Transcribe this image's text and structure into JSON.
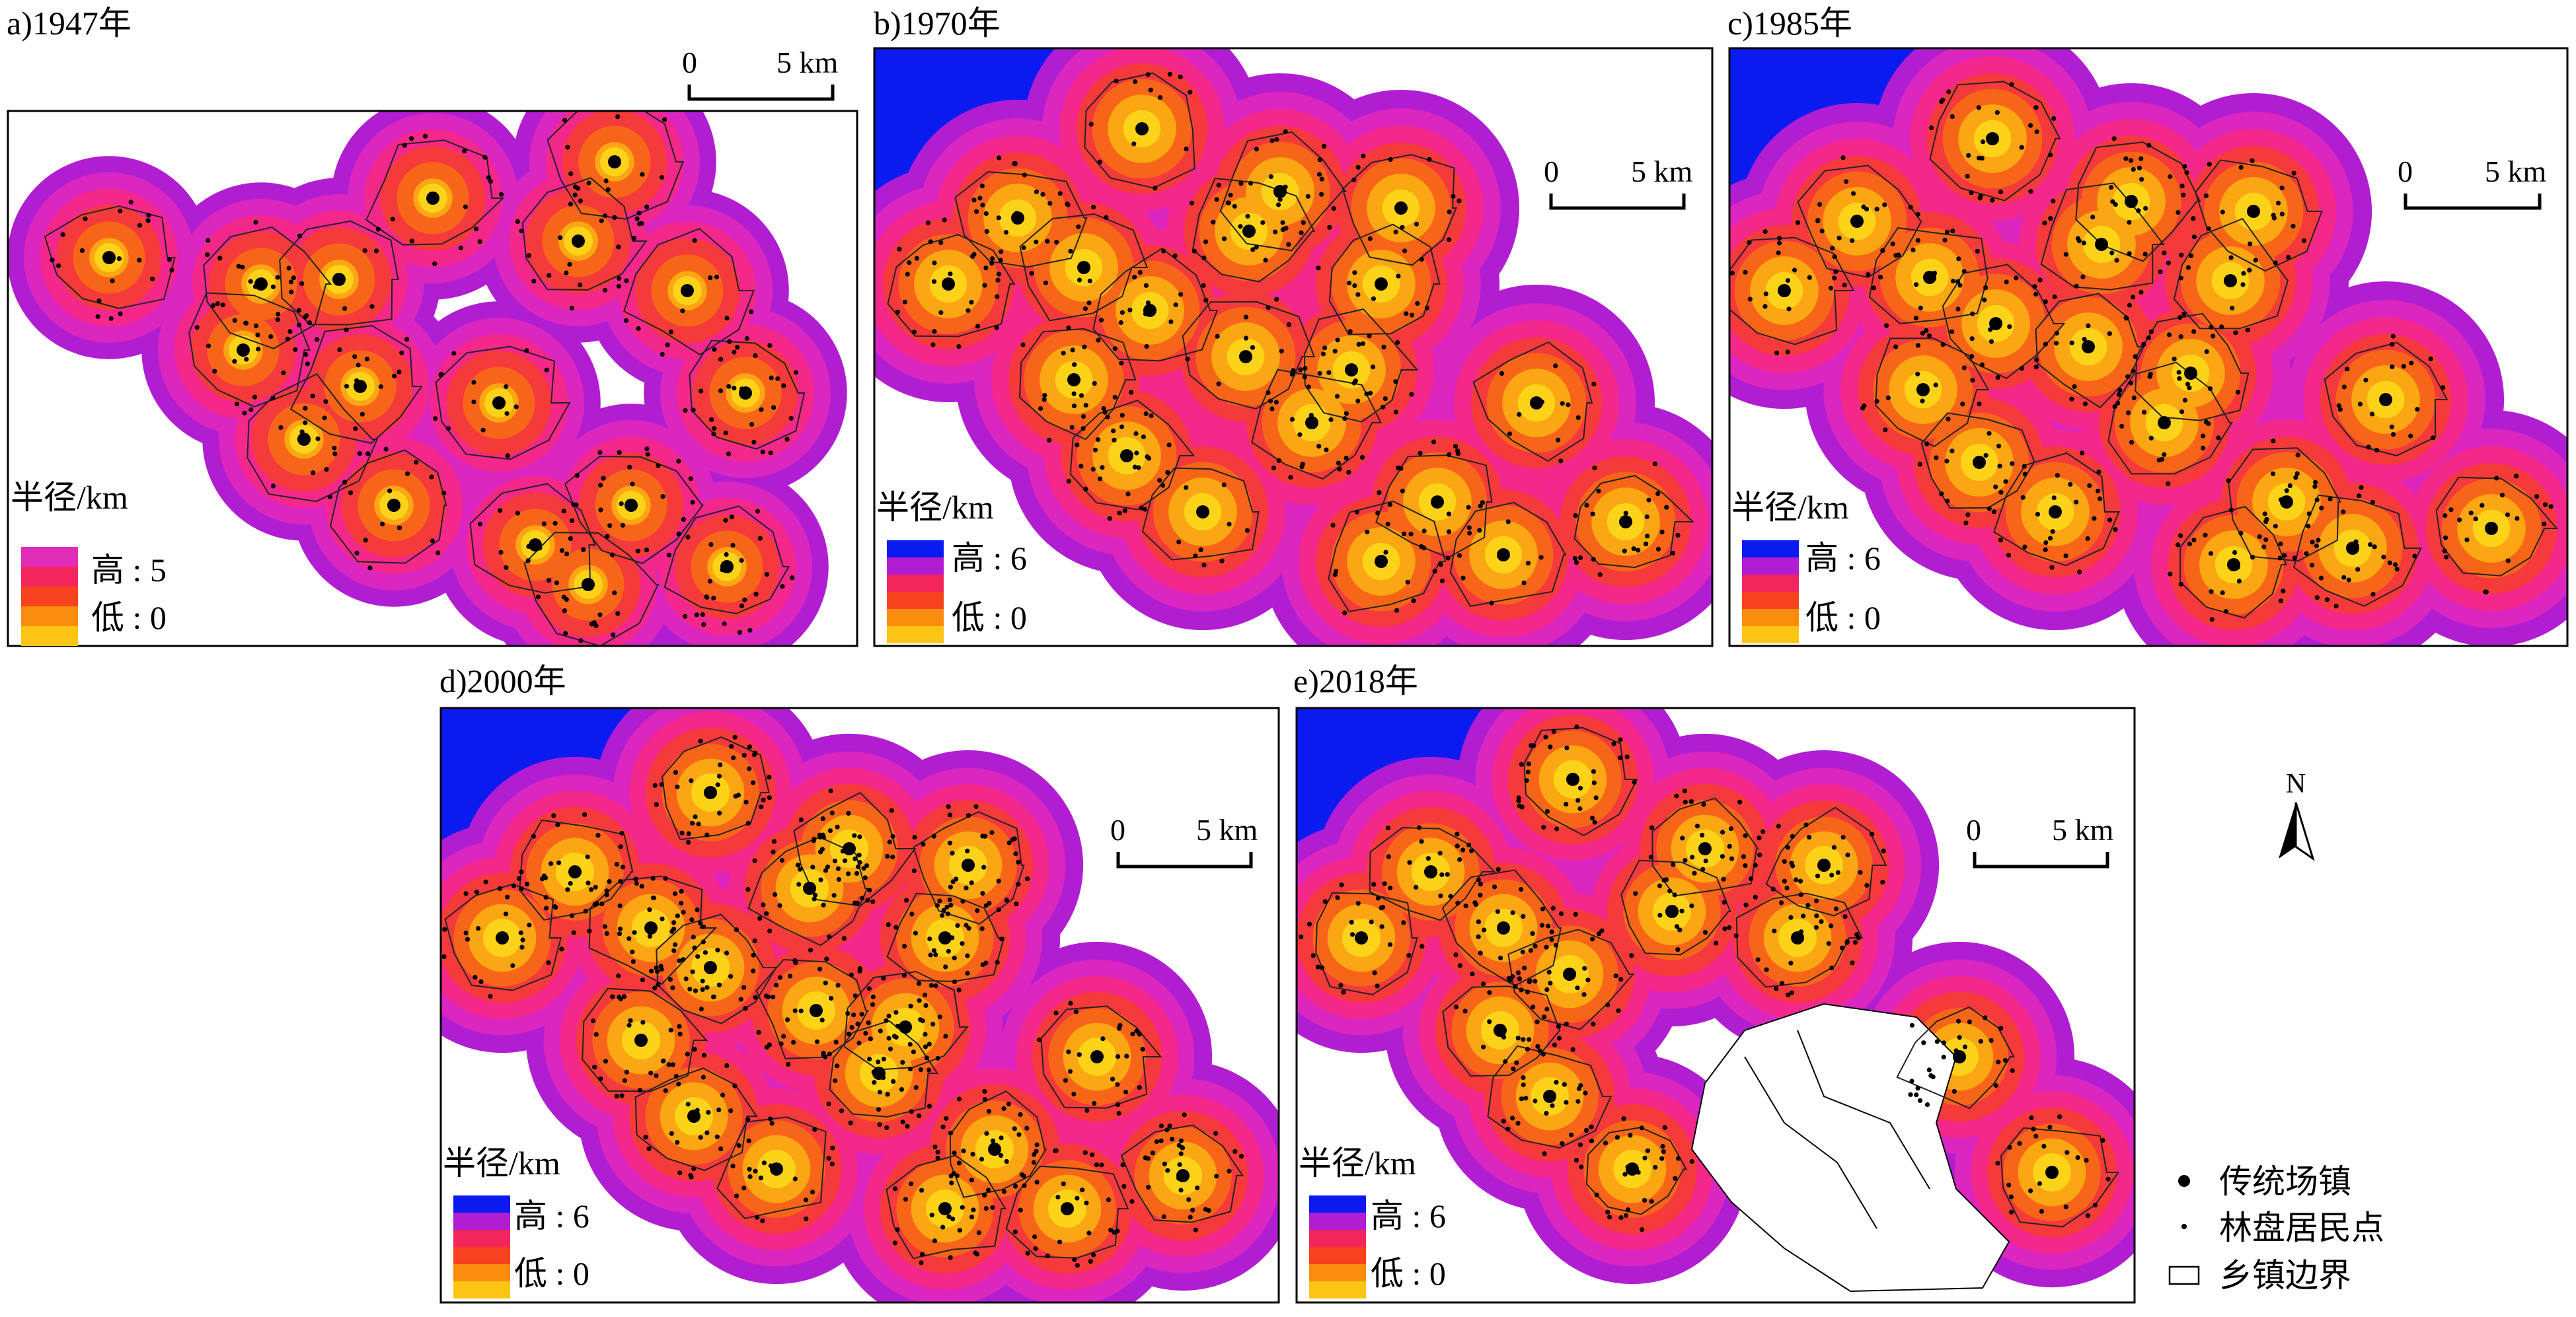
{
  "panels": [
    {
      "id": "a",
      "title": "a)1947年",
      "scale": {
        "zero": "0",
        "distance": "5 km"
      },
      "legend": {
        "title": "半径/km",
        "high": "高 : 5",
        "low": "低 : 0"
      },
      "legend_colors": [
        "#e22db8",
        "#f2255c",
        "#f7421f",
        "#fa8d0d",
        "#fdc513"
      ],
      "ring_colors": [
        "#b11ed2",
        "#dc26c0",
        "#f3288a",
        "#f53a3c",
        "#f76618",
        "#fba613",
        "#fdd31a"
      ]
    },
    {
      "id": "b",
      "title": "b)1970年",
      "scale": {
        "zero": "0",
        "distance": "5 km"
      },
      "legend": {
        "title": "半径/km",
        "high": "高 : 6",
        "low": "低 : 0"
      },
      "legend_colors": [
        "#0b1bf0",
        "#b11ed2",
        "#f2255c",
        "#f7421f",
        "#fa8d0d",
        "#fdc513"
      ],
      "ring_colors": [
        "#0b1bf0",
        "#b11ed2",
        "#dc26c0",
        "#f3288a",
        "#f53a3c",
        "#f76618",
        "#fba613",
        "#fdd31a"
      ]
    },
    {
      "id": "c",
      "title": "c)1985年",
      "scale": {
        "zero": "0",
        "distance": "5 km"
      },
      "legend": {
        "title": "半径/km",
        "high": "高 : 6",
        "low": "低 : 0"
      },
      "legend_colors": [
        "#0b1bf0",
        "#b11ed2",
        "#f2255c",
        "#f7421f",
        "#fa8d0d",
        "#fdc513"
      ],
      "ring_colors": [
        "#0b1bf0",
        "#b11ed2",
        "#dc26c0",
        "#f3288a",
        "#f53a3c",
        "#f76618",
        "#fba613",
        "#fdd31a"
      ]
    },
    {
      "id": "d",
      "title": "d)2000年",
      "scale": {
        "zero": "0",
        "distance": "5 km"
      },
      "legend": {
        "title": "半径/km",
        "high": "高 : 6",
        "low": "低 : 0"
      },
      "legend_colors": [
        "#0b1bf0",
        "#b11ed2",
        "#f2255c",
        "#f7421f",
        "#fa8d0d",
        "#fdc513"
      ],
      "ring_colors": [
        "#0b1bf0",
        "#b11ed2",
        "#dc26c0",
        "#f3288a",
        "#f53a3c",
        "#f76618",
        "#fba613",
        "#fdd31a"
      ]
    },
    {
      "id": "e",
      "title": "e)2018年",
      "scale": {
        "zero": "0",
        "distance": "5 km"
      },
      "legend": {
        "title": "半径/km",
        "high": "高 : 6",
        "low": "低 : 0"
      },
      "legend_colors": [
        "#0b1bf0",
        "#b11ed2",
        "#f2255c",
        "#f7421f",
        "#fa8d0d",
        "#fdc513"
      ],
      "ring_colors": [
        "#0b1bf0",
        "#b11ed2",
        "#dc26c0",
        "#f3288a",
        "#f53a3c",
        "#f76618",
        "#fba613",
        "#fdd31a"
      ]
    }
  ],
  "north_arrow": {
    "label": "N",
    "icon": "north-arrow-icon"
  },
  "map_legend": {
    "town": "传统场镇",
    "settlement": "林盘居民点",
    "boundary": "乡镇边界"
  }
}
